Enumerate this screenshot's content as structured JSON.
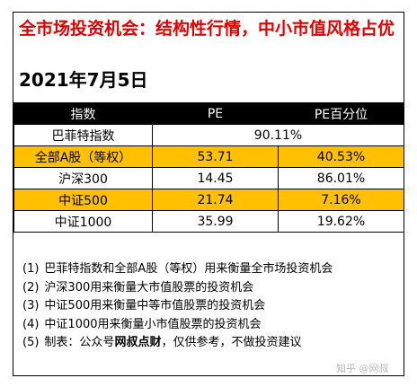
{
  "title": "全市场投资机会：结构性行情，中小市值风格占优",
  "date": "2021年7月5日",
  "table": {
    "headers": [
      "指数",
      "PE",
      "PE百分位"
    ],
    "merged_row": {
      "name": "巴菲特指数",
      "value": "90.11%"
    },
    "rows": [
      {
        "name": "全部A股（等权）",
        "pe": "53.71",
        "pct": "40.53%",
        "highlight": true
      },
      {
        "name": "沪深300",
        "pe": "14.45",
        "pct": "86.01%",
        "highlight": false
      },
      {
        "name": "中证500",
        "pe": "21.74",
        "pct": "7.16%",
        "highlight": true
      },
      {
        "name": "中证1000",
        "pe": "35.99",
        "pct": "19.62%",
        "highlight": false
      }
    ],
    "highlight_color": "#ffc000",
    "header_bg": "#000000"
  },
  "notes": [
    {
      "num": "(1)",
      "text": "巴菲特指数和全部A股（等权）用来衡量全市场投资机会"
    },
    {
      "num": "(2)",
      "text": "沪深300用来衡量大市值股票的投资机会"
    },
    {
      "num": "(3)",
      "text": "中证500用来衡量中等市值股票的投资机会"
    },
    {
      "num": "(4)",
      "text": "中证1000用来衡量小市值股票的投资机会"
    },
    {
      "num": "(5)",
      "text_before": "制表：公众号",
      "text_bold": "网叔点财",
      "text_after": "，仅供参考，不做投资建议"
    }
  ],
  "title_color": "#e00000",
  "watermark": "知乎 @网叔"
}
